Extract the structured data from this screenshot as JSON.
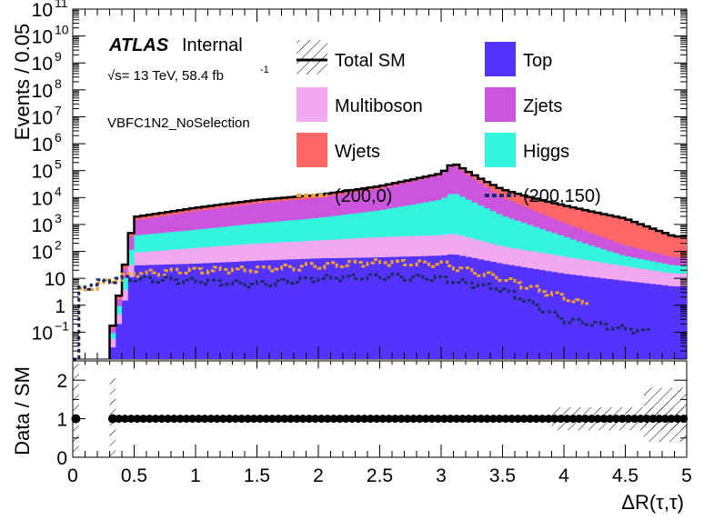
{
  "chart_data": [
    {
      "type": "area",
      "subtype": "stacked-histogram",
      "yscale": "log",
      "ylabel": "Events / 0.05",
      "xlim": [
        0,
        5
      ],
      "ylim": [
        0.01,
        100000000000
      ],
      "y_ticks": [
        {
          "base": "10",
          "exp": "11"
        },
        {
          "base": "10",
          "exp": "10"
        },
        {
          "base": "10",
          "exp": "9"
        },
        {
          "base": "10",
          "exp": "8"
        },
        {
          "base": "10",
          "exp": "7"
        },
        {
          "base": "10",
          "exp": "6"
        },
        {
          "base": "10",
          "exp": "5"
        },
        {
          "base": "10",
          "exp": "4"
        },
        {
          "base": "10",
          "exp": "3"
        },
        {
          "base": "10",
          "exp": "2"
        },
        {
          "base": "10",
          "exp": ""
        },
        {
          "base": "1",
          "exp": ""
        },
        {
          "base": "10",
          "exp": "−1"
        }
      ],
      "atlas_label": "ATLAS",
      "internal_label": "Internal",
      "energy_label": "√s= 13 TeV, 58.4 fb",
      "energy_exp": "-1",
      "region_label": "VBFC1N2_NoSelection",
      "legend": [
        {
          "label": "Total SM",
          "style": "line-hatch",
          "color": "#000000"
        },
        {
          "label": "Top",
          "style": "box",
          "color": "#5533ff"
        },
        {
          "label": "Multiboson",
          "style": "box",
          "color": "#f0a8f0"
        },
        {
          "label": "Zjets",
          "style": "box",
          "color": "#cc55dd"
        },
        {
          "label": "Wjets",
          "style": "box",
          "color": "#ff6666"
        },
        {
          "label": "Higgs",
          "style": "box",
          "color": "#33f5dd"
        },
        {
          "label": "(200,0)",
          "style": "dash",
          "color": "#f0a030"
        },
        {
          "label": "(200,150)",
          "style": "dash",
          "color": "#1a2a6a"
        }
      ],
      "series": [
        {
          "name": "Top",
          "color": "#5533ff",
          "x": [
            0.3,
            0.5,
            1.0,
            1.5,
            2.0,
            2.5,
            3.0,
            3.1,
            3.5,
            4.0,
            4.5,
            4.9
          ],
          "values": [
            0.01,
            30,
            35,
            45,
            55,
            60,
            70,
            80,
            35,
            15,
            8,
            5
          ]
        },
        {
          "name": "Multiboson",
          "color": "#f0a8f0",
          "x": [
            0.3,
            0.5,
            1.0,
            1.5,
            2.0,
            2.5,
            3.0,
            3.1,
            3.5,
            4.0,
            4.5,
            4.9
          ],
          "values": [
            0.01,
            60,
            100,
            150,
            200,
            280,
            330,
            380,
            120,
            50,
            20,
            10
          ]
        },
        {
          "name": "Higgs",
          "color": "#33f5dd",
          "x": [
            0.3,
            0.5,
            1.0,
            1.5,
            2.0,
            2.5,
            3.0,
            3.1,
            3.5,
            4.0,
            4.5,
            4.9
          ],
          "values": [
            0.01,
            300,
            500,
            900,
            1500,
            3000,
            8000,
            15000,
            2000,
            300,
            40,
            15
          ]
        },
        {
          "name": "Zjets",
          "color": "#cc55dd",
          "x": [
            0.3,
            0.5,
            1.0,
            1.5,
            2.0,
            2.5,
            3.0,
            3.1,
            3.5,
            4.0,
            4.5,
            4.9
          ],
          "values": [
            0.01,
            1000,
            2500,
            5000,
            8000,
            18000,
            60000,
            150000,
            8000,
            800,
            100,
            30
          ]
        },
        {
          "name": "Wjets",
          "color": "#ff6666",
          "x": [
            0.3,
            0.5,
            1.0,
            1.5,
            2.0,
            2.5,
            3.0,
            3.1,
            3.5,
            4.0,
            4.5,
            4.9
          ],
          "values": [
            0.01,
            500,
            1000,
            2000,
            2800,
            5000,
            10000,
            30000,
            10000,
            4000,
            1500,
            300
          ]
        },
        {
          "name": "Total SM",
          "color": "#000000",
          "x": [
            0.3,
            0.5,
            1.0,
            1.5,
            2.0,
            2.5,
            3.0,
            3.1,
            3.5,
            4.0,
            4.5,
            4.9
          ],
          "values": [
            0.01,
            1500,
            3500,
            7000,
            11000,
            25000,
            80000,
            200000,
            20000,
            5000,
            1700,
            400
          ]
        },
        {
          "name": "(200,0)",
          "color": "#f0a030",
          "x": [
            0.05,
            0.3,
            0.5,
            1.0,
            1.5,
            2.0,
            2.5,
            3.0,
            3.5,
            4.0,
            4.2
          ],
          "values": [
            3,
            8,
            15,
            20,
            22,
            30,
            40,
            35,
            10,
            2,
            1
          ]
        },
        {
          "name": "(200,150)",
          "color": "#1a2a6a",
          "x": [
            0.05,
            0.3,
            0.5,
            1.0,
            1.5,
            2.0,
            2.5,
            3.0,
            3.5,
            4.0,
            4.7
          ],
          "values": [
            4,
            9,
            10,
            8,
            6,
            10,
            12,
            10,
            4,
            0.3,
            0.1
          ]
        }
      ]
    },
    {
      "type": "scatter",
      "subtype": "ratio",
      "ylabel": "Data / SM",
      "xlabel": "ΔR(τ,τ)",
      "xlim": [
        0,
        5
      ],
      "ylim": [
        0,
        2.5
      ],
      "y_ticks": [
        "2",
        "1",
        "0"
      ],
      "x_ticks": [
        "0",
        "0.5",
        "1",
        "1.5",
        "2",
        "2.5",
        "3",
        "3.5",
        "4",
        "4.5",
        "5"
      ],
      "points": [
        {
          "x": 0.025,
          "y": 1
        },
        {
          "x": 0.325,
          "y": 1
        }
      ],
      "line_from_x": 0.3,
      "line_to_x": 5,
      "ratio_value": 1
    }
  ]
}
